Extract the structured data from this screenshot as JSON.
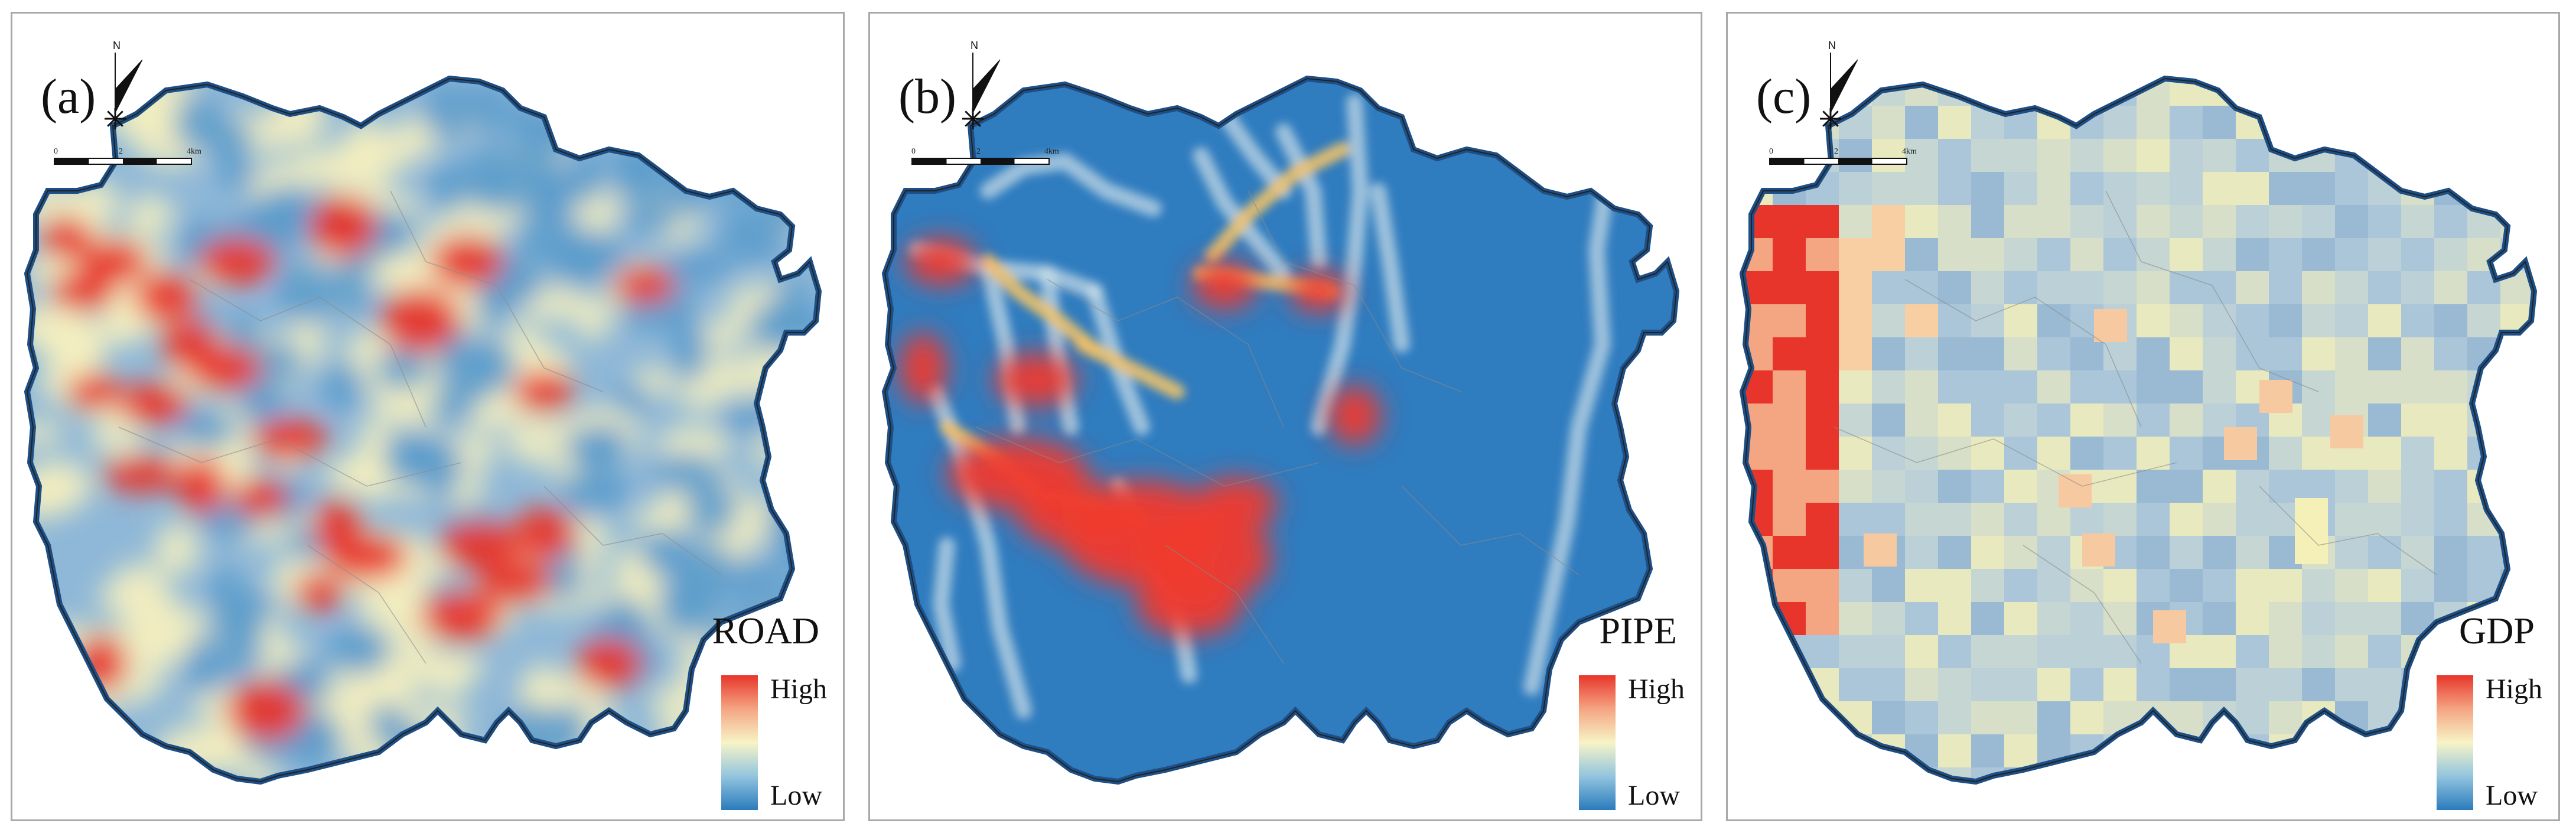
{
  "panels": [
    {
      "id": "a",
      "label": "(a)",
      "legend_title": "ROAD",
      "legend_high": "High",
      "legend_low": "Low",
      "north_label": "N",
      "scale_labels": [
        "0",
        "2",
        "4km"
      ],
      "pattern": "road"
    },
    {
      "id": "b",
      "label": "(b)",
      "legend_title": "PIPE",
      "legend_high": "High",
      "legend_low": "Low",
      "north_label": "N",
      "scale_labels": [
        "0",
        "2",
        "4km"
      ],
      "pattern": "pipe"
    },
    {
      "id": "c",
      "label": "(c)",
      "legend_title": "GDP",
      "legend_high": "High",
      "legend_low": "Low",
      "north_label": "N",
      "scale_labels": [
        "0",
        "2",
        "4km"
      ],
      "pattern": "gdp"
    }
  ],
  "colors": {
    "high": "#e8352b",
    "mid_high": "#f4a582",
    "mid": "#f7f4c6",
    "mid_low": "#92c5de",
    "low": "#2b7bbd",
    "panel_border": "#a8a8a8"
  }
}
